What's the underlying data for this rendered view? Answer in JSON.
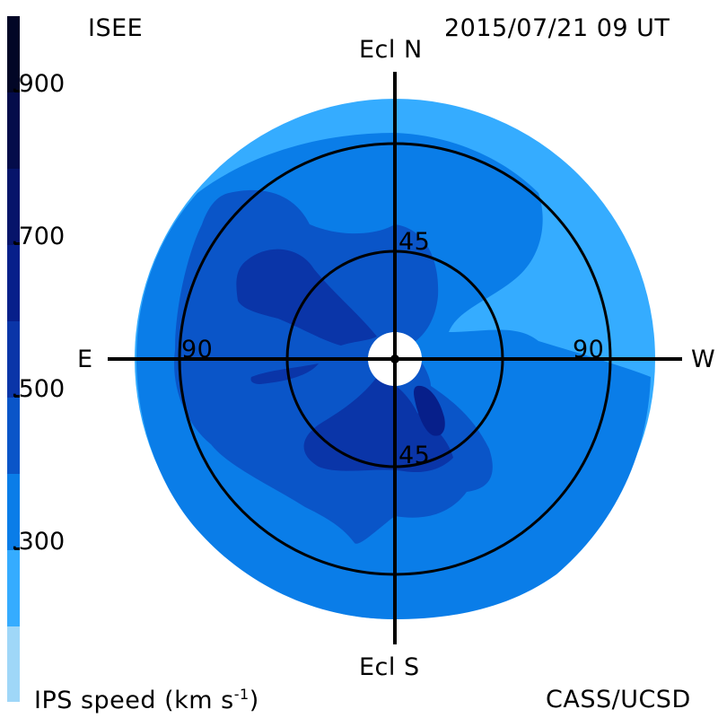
{
  "header": {
    "org": "ISEE",
    "timestamp": "2015/07/21 09 UT"
  },
  "footer": {
    "legend_title_base": "IPS speed (km s",
    "legend_title_exp": "-1",
    "legend_title_end": ")",
    "credit": "CASS/UCSD"
  },
  "directions": {
    "north": "Ecl N",
    "south": "Ecl S",
    "east": "E",
    "west": "W"
  },
  "ring_labels": {
    "inner_north": "45",
    "inner_south": "45",
    "outer_east": "90",
    "outer_west": "90"
  },
  "colorbar": {
    "ticks": [
      ".900",
      ".700",
      ".500",
      ".300"
    ],
    "colors": {
      "lt_200": "#9fd7f8",
      "200_300": "#35acff",
      "300_400": "#0a7de8",
      "400_500": "#0a55c8",
      "500_600": "#0a35a8",
      "600_700": "#071f8a",
      "700_800": "#06146a",
      "800_900": "#040c4a",
      "gt_900": "#020626"
    }
  }
}
